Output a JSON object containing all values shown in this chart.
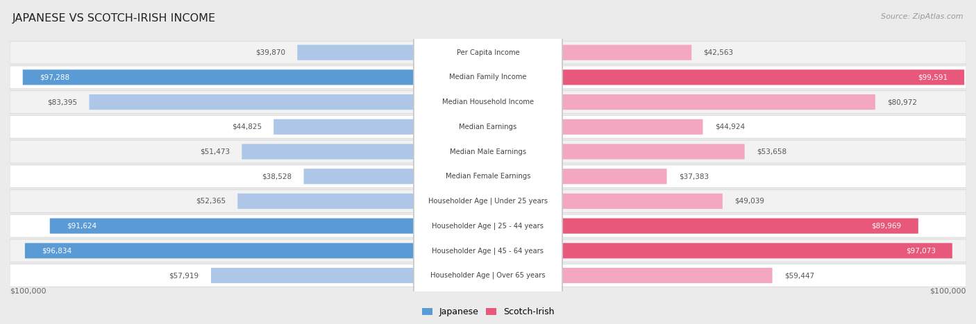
{
  "title": "JAPANESE VS SCOTCH-IRISH INCOME",
  "source": "Source: ZipAtlas.com",
  "max_value": 100000,
  "categories": [
    "Per Capita Income",
    "Median Family Income",
    "Median Household Income",
    "Median Earnings",
    "Median Male Earnings",
    "Median Female Earnings",
    "Householder Age | Under 25 years",
    "Householder Age | 25 - 44 years",
    "Householder Age | 45 - 64 years",
    "Householder Age | Over 65 years"
  ],
  "japanese": [
    39870,
    97288,
    83395,
    44825,
    51473,
    38528,
    52365,
    91624,
    96834,
    57919
  ],
  "scotch_irish": [
    42563,
    99591,
    80972,
    44924,
    53658,
    37383,
    49039,
    89969,
    97073,
    59447
  ],
  "jp_color_light": "#aec6e8",
  "jp_color_dark": "#5b9bd5",
  "si_color_light": "#f4a7c0",
  "si_color_dark": "#e8587a",
  "bg_color": "#ebebeb",
  "row_colors": [
    "#f2f2f2",
    "#ffffff"
  ],
  "row_border": "#d8d8d8",
  "label_box_fill": "#ffffff",
  "label_box_edge": "#c8c8c8",
  "label_color": "#444444",
  "value_color_outside": "#555555",
  "value_color_inside": "#ffffff",
  "axis_label_color": "#666666",
  "threshold_full": 0.88
}
